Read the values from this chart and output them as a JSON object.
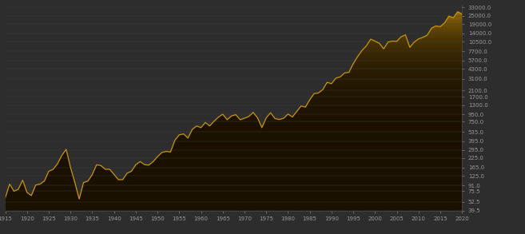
{
  "background_color": "#2d2d2d",
  "line_color": "#c8960c",
  "x_ticks": [
    1915,
    1920,
    1925,
    1930,
    1935,
    1940,
    1945,
    1950,
    1955,
    1960,
    1965,
    1970,
    1975,
    1980,
    1985,
    1990,
    1995,
    2000,
    2005,
    2010,
    2015,
    2020
  ],
  "y_ticks": [
    39.5,
    52.5,
    75.5,
    91.0,
    125.0,
    165.0,
    225.0,
    295.0,
    395.0,
    535.0,
    750.0,
    950.0,
    1300.0,
    1700.0,
    2100.0,
    3100.0,
    4300.0,
    5700.0,
    7700.0,
    10500.0,
    14000.0,
    19000.0,
    25000.0,
    33000.0
  ],
  "y_tick_labels": [
    "39.5",
    "52.5",
    "75.5",
    "91.0",
    "125.0",
    "165.0",
    "225.0",
    "295.0",
    "395.0",
    "535.0",
    "750.0",
    "950.0",
    "1300.0",
    "1700.0",
    "2100.0",
    "3100.0",
    "4300.0",
    "5700.0",
    "7700.0",
    "10500.0",
    "14000.0",
    "19000.0",
    "25000.0",
    "33000.0"
  ],
  "ylim_min": 39.5,
  "ylim_max": 36000,
  "xlim_min": 1915,
  "xlim_max": 2020,
  "dji_data": {
    "1915": 60,
    "1916": 95,
    "1917": 75,
    "1918": 80,
    "1919": 108,
    "1920": 72,
    "1921": 65,
    "1922": 92,
    "1923": 95,
    "1924": 105,
    "1925": 145,
    "1926": 155,
    "1927": 185,
    "1928": 245,
    "1929": 300,
    "1930": 165,
    "1931": 100,
    "1932": 58,
    "1933": 100,
    "1934": 105,
    "1935": 130,
    "1936": 180,
    "1937": 175,
    "1938": 155,
    "1939": 155,
    "1940": 131,
    "1941": 110,
    "1942": 110,
    "1943": 136,
    "1944": 145,
    "1945": 180,
    "1946": 200,
    "1947": 181,
    "1948": 178,
    "1949": 200,
    "1950": 235,
    "1951": 270,
    "1952": 280,
    "1953": 275,
    "1954": 405,
    "1955": 485,
    "1956": 500,
    "1957": 435,
    "1958": 580,
    "1959": 650,
    "1960": 615,
    "1961": 730,
    "1962": 650,
    "1963": 760,
    "1964": 870,
    "1965": 960,
    "1966": 800,
    "1967": 905,
    "1968": 945,
    "1969": 800,
    "1970": 840,
    "1971": 890,
    "1972": 1020,
    "1973": 850,
    "1974": 616,
    "1975": 852,
    "1976": 1005,
    "1977": 831,
    "1978": 805,
    "1979": 839,
    "1980": 964,
    "1981": 875,
    "1982": 1047,
    "1983": 1259,
    "1984": 1212,
    "1985": 1547,
    "1986": 1896,
    "1987": 1939,
    "1988": 2169,
    "1989": 2753,
    "1990": 2634,
    "1991": 3169,
    "1992": 3301,
    "1993": 3754,
    "1994": 3834,
    "1995": 5117,
    "1996": 6449,
    "1997": 7908,
    "1998": 9181,
    "1999": 11497,
    "2000": 10788,
    "2001": 10022,
    "2002": 8342,
    "2003": 10454,
    "2004": 10783,
    "2005": 10718,
    "2006": 12463,
    "2007": 13265,
    "2008": 8776,
    "2009": 10428,
    "2010": 11578,
    "2011": 12218,
    "2012": 13104,
    "2013": 16577,
    "2014": 17823,
    "2015": 17425,
    "2016": 19763,
    "2017": 24719,
    "2018": 23327,
    "2019": 28538,
    "2020": 26501
  }
}
